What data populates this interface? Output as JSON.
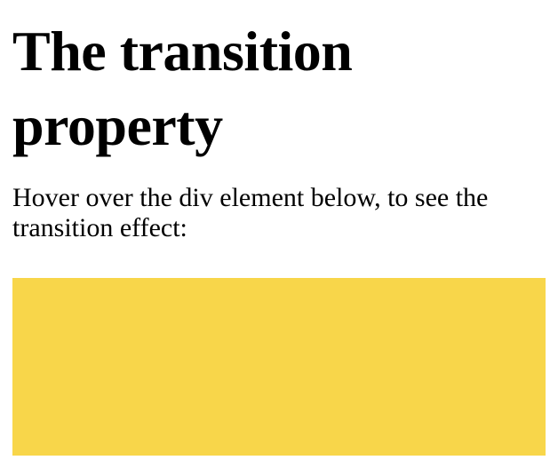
{
  "heading": {
    "title": "The transition property"
  },
  "body": {
    "instructions": "Hover over the div element below, to see the transition effect:"
  },
  "demo_box": {
    "color": "#F8D64A"
  }
}
